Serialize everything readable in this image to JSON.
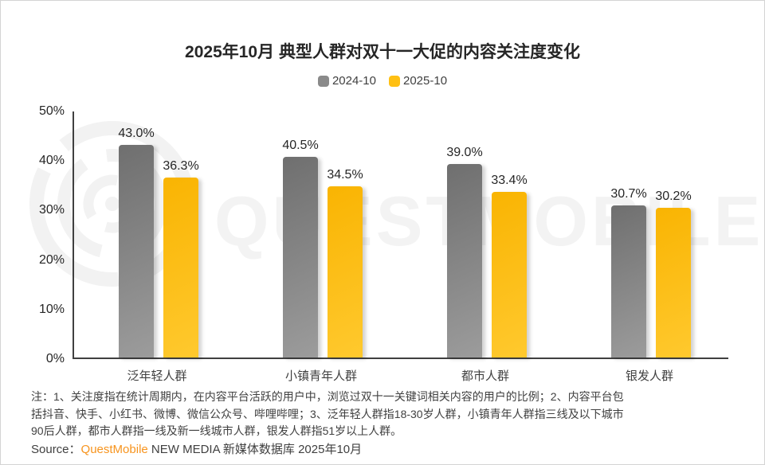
{
  "title": "2025年10月 典型人群对双十一大促的内容关注度变化",
  "watermark": "QUESTMOBILE",
  "chart_data": {
    "type": "bar",
    "title": "2025年10月 典型人群对双十一大促的内容关注度变化",
    "categories": [
      "泛年轻人群",
      "小镇青年人群",
      "都市人群",
      "银发人群"
    ],
    "series": [
      {
        "name": "2024-10",
        "color": "#8a8a8a",
        "gradient": [
          "#6f6f6f",
          "#9c9c9c"
        ],
        "values": [
          43.0,
          40.5,
          39.0,
          30.7
        ]
      },
      {
        "name": "2025-10",
        "color": "#ffc013",
        "gradient": [
          "#f9b402",
          "#ffc92e"
        ],
        "values": [
          36.3,
          34.5,
          33.4,
          30.2
        ]
      }
    ],
    "value_labels": [
      [
        "43.0%",
        "36.3%"
      ],
      [
        "40.5%",
        "34.5%"
      ],
      [
        "39.0%",
        "33.4%"
      ],
      [
        "30.7%",
        "30.2%"
      ]
    ],
    "xlabel": "",
    "ylabel": "",
    "ylim": [
      0,
      50
    ],
    "yticks": [
      "0%",
      "10%",
      "20%",
      "30%",
      "40%",
      "50%"
    ],
    "grid": false,
    "legend_position": "top-center"
  },
  "note": [
    "注：1、关注度指在统计周期内，在内容平台活跃的用户中，浏览过双十一关键词相关内容的用户的比例；2、内容平台包",
    "括抖音、快手、小红书、微博、微信公众号、哔哩哔哩；3、泛年轻人群指18-30岁人群，小镇青年人群指三线及以下城市",
    "90后人群，都市人群指一线及新一线城市人群，银发人群指51岁以上人群。"
  ],
  "source": {
    "prefix": "Source：",
    "brand": "QuestMobile",
    "rest": " NEW MEDIA 新媒体数据库 2025年10月"
  }
}
